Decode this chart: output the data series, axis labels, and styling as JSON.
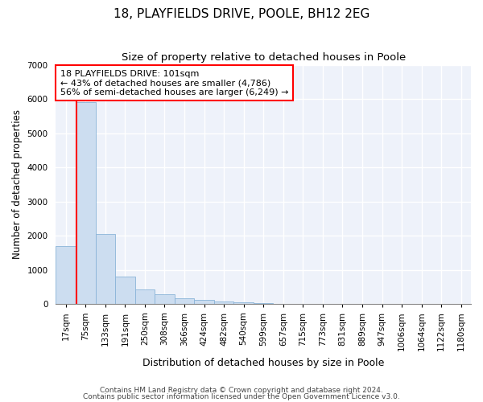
{
  "title1": "18, PLAYFIELDS DRIVE, POOLE, BH12 2EG",
  "title2": "Size of property relative to detached houses in Poole",
  "xlabel": "Distribution of detached houses by size in Poole",
  "ylabel": "Number of detached properties",
  "bar_labels": [
    "17sqm",
    "75sqm",
    "133sqm",
    "191sqm",
    "250sqm",
    "308sqm",
    "366sqm",
    "424sqm",
    "482sqm",
    "540sqm",
    "599sqm",
    "657sqm",
    "715sqm",
    "773sqm",
    "831sqm",
    "889sqm",
    "947sqm",
    "1006sqm",
    "1064sqm",
    "1122sqm",
    "1180sqm"
  ],
  "bar_values": [
    1700,
    5900,
    2050,
    800,
    430,
    280,
    180,
    120,
    80,
    55,
    30,
    15,
    10,
    5,
    2,
    1,
    1,
    0,
    0,
    0,
    0
  ],
  "bar_color": "#ccddf0",
  "bar_edge_color": "#8ab4d8",
  "annotation_text": "18 PLAYFIELDS DRIVE: 101sqm\n← 43% of detached houses are smaller (4,786)\n56% of semi-detached houses are larger (6,249) →",
  "annotation_box_color": "white",
  "annotation_box_edge": "red",
  "red_line_color": "red",
  "ylim": [
    0,
    7000
  ],
  "yticks": [
    0,
    1000,
    2000,
    3000,
    4000,
    5000,
    6000,
    7000
  ],
  "footer1": "Contains HM Land Registry data © Crown copyright and database right 2024.",
  "footer2": "Contains public sector information licensed under the Open Government Licence v3.0.",
  "background_color": "#eef2fa",
  "grid_color": "white",
  "title1_fontsize": 11,
  "title2_fontsize": 9.5,
  "tick_fontsize": 7.5,
  "ylabel_fontsize": 8.5,
  "xlabel_fontsize": 9,
  "annotation_fontsize": 8,
  "footer_fontsize": 6.5
}
